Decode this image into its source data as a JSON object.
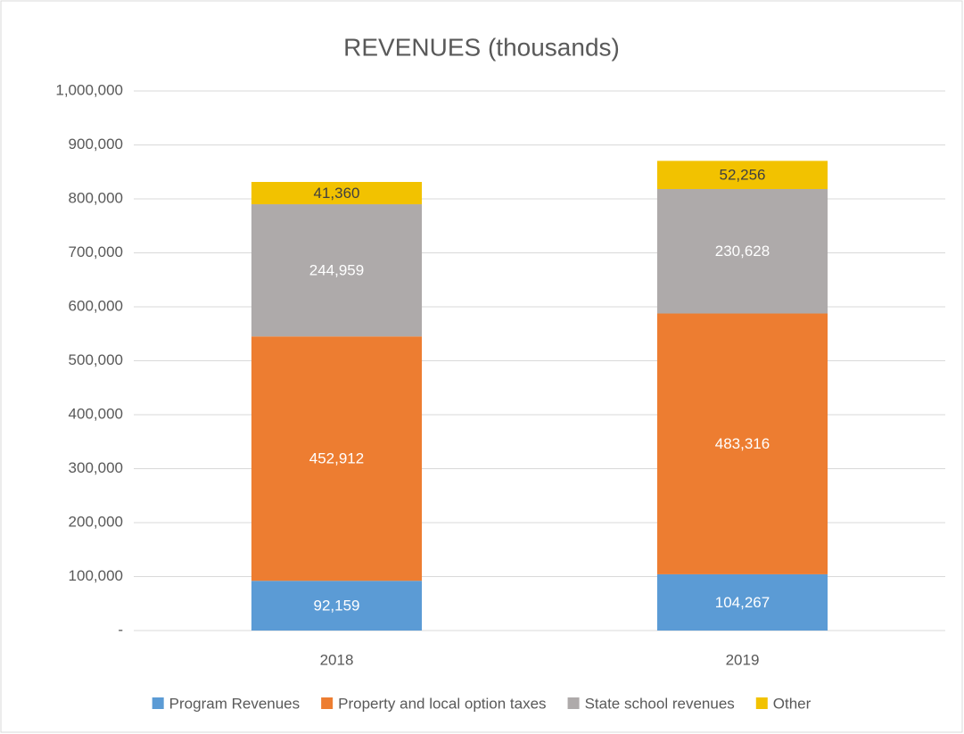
{
  "chart_data": {
    "type": "stacked_bar",
    "title": "REVENUES (thousands)",
    "categories": [
      "2018",
      "2019"
    ],
    "series": [
      {
        "name": "Program Revenues",
        "color": "#5b9bd5",
        "label_color": "#ffffff",
        "values": [
          92159,
          104267
        ],
        "value_labels": [
          "92,159",
          "104,267"
        ]
      },
      {
        "name": "Property and local option taxes",
        "color": "#ed7d31",
        "label_color": "#ffffff",
        "values": [
          452912,
          483316
        ],
        "value_labels": [
          "452,912",
          "483,316"
        ]
      },
      {
        "name": "State school revenues",
        "color": "#aeaaaa",
        "label_color": "#ffffff",
        "values": [
          244959,
          230628
        ],
        "value_labels": [
          "244,959",
          "230,628"
        ]
      },
      {
        "name": "Other",
        "color": "#f2c200",
        "label_color": "#404040",
        "values": [
          41360,
          52256
        ],
        "value_labels": [
          "41,360",
          "52,256"
        ]
      }
    ],
    "ylim": [
      0,
      1000000
    ],
    "yticks": [
      {
        "value": 0,
        "label": "-"
      },
      {
        "value": 100000,
        "label": "100,000"
      },
      {
        "value": 200000,
        "label": "200,000"
      },
      {
        "value": 300000,
        "label": "300,000"
      },
      {
        "value": 400000,
        "label": "400,000"
      },
      {
        "value": 500000,
        "label": "500,000"
      },
      {
        "value": 600000,
        "label": "600,000"
      },
      {
        "value": 700000,
        "label": "700,000"
      },
      {
        "value": 800000,
        "label": "800,000"
      },
      {
        "value": 900000,
        "label": "900,000"
      },
      {
        "value": 1000000,
        "label": "1,000,000"
      }
    ],
    "grid": true,
    "legend": "bottom"
  }
}
